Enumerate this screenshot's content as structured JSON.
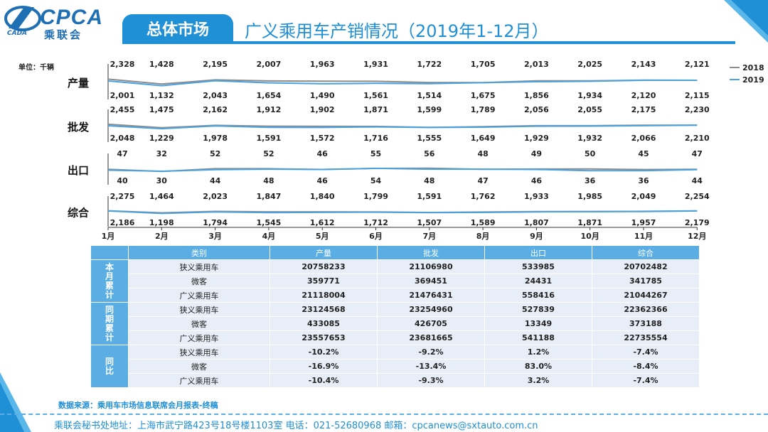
{
  "header": {
    "logo_text": "CPCA",
    "logo_cn": "乘联会",
    "logo_sub": "CADA",
    "section_tab": "总体市场",
    "page_title": "广义乘用车产销情况（2019年1-12月）"
  },
  "unit_label": "单位：千辆",
  "chart_data": {
    "type": "line",
    "months": [
      "1月",
      "2月",
      "3月",
      "4月",
      "5月",
      "6月",
      "7月",
      "8月",
      "9月",
      "10月",
      "11月",
      "12月"
    ],
    "legend": [
      "2018",
      "2019"
    ],
    "colors": {
      "2018": "#8c8c8c",
      "2019": "#4aa3df"
    },
    "groups": [
      {
        "label": "产量",
        "s2018": [
          2328,
          1428,
          2195,
          2007,
          1963,
          1931,
          1722,
          1705,
          2013,
          2025,
          2143,
          2121
        ],
        "s2019": [
          2001,
          1132,
          2043,
          1654,
          1490,
          1561,
          1514,
          1675,
          1856,
          1934,
          2120,
          2115
        ]
      },
      {
        "label": "批发",
        "s2018": [
          2455,
          1475,
          2162,
          1912,
          1902,
          1871,
          1599,
          1789,
          2056,
          2055,
          2175,
          2230
        ],
        "s2019": [
          2048,
          1229,
          1978,
          1591,
          1572,
          1716,
          1555,
          1649,
          1929,
          1932,
          2066,
          2210
        ]
      },
      {
        "label": "出口",
        "s2018": [
          47,
          30,
          52,
          52,
          46,
          54,
          56,
          47,
          49,
          50,
          45,
          47
        ],
        "s2019": [
          40,
          32,
          44,
          48,
          46,
          55,
          48,
          48,
          46,
          36,
          36,
          44
        ]
      },
      {
        "label": "综合",
        "s2018": [
          2275,
          1464,
          2023,
          1847,
          1840,
          1799,
          1591,
          1762,
          1933,
          1985,
          2049,
          2254
        ],
        "s2019": [
          2186,
          1198,
          1794,
          1545,
          1612,
          1712,
          1507,
          1589,
          1807,
          1871,
          1957,
          2179
        ]
      }
    ]
  },
  "table": {
    "headers": [
      "类别",
      "产量",
      "批发",
      "出口",
      "综合"
    ],
    "groups": [
      {
        "label": "本月累计",
        "rows": [
          [
            "狭义乘用车",
            "20758233",
            "21106980",
            "533985",
            "20702482"
          ],
          [
            "微客",
            "359771",
            "369451",
            "24431",
            "341785"
          ],
          [
            "广义乘用车",
            "21118004",
            "21476431",
            "558416",
            "21044267"
          ]
        ]
      },
      {
        "label": "同期累计",
        "rows": [
          [
            "狭义乘用车",
            "23124568",
            "23254960",
            "527839",
            "22362366"
          ],
          [
            "微客",
            "433085",
            "426705",
            "13349",
            "373188"
          ],
          [
            "广义乘用车",
            "23557653",
            "23681665",
            "541188",
            "22735554"
          ]
        ]
      },
      {
        "label": "同比",
        "rows": [
          [
            "狭义乘用车",
            "-10.2%",
            "-9.2%",
            "1.2%",
            "-7.4%"
          ],
          [
            "微客",
            "-16.9%",
            "-13.4%",
            "83.0%",
            "-8.4%"
          ],
          [
            "广义乘用车",
            "-10.4%",
            "-9.3%",
            "3.2%",
            "-7.4%"
          ]
        ]
      }
    ]
  },
  "source": "数据来源：乘用车市场信息联席会月报表-终稿",
  "footer": "乘联会秘书处地址：上海市武宁路423号18号楼1103室   电话：021-52680968   邮箱：cpcanews@sxtauto.com.cn"
}
